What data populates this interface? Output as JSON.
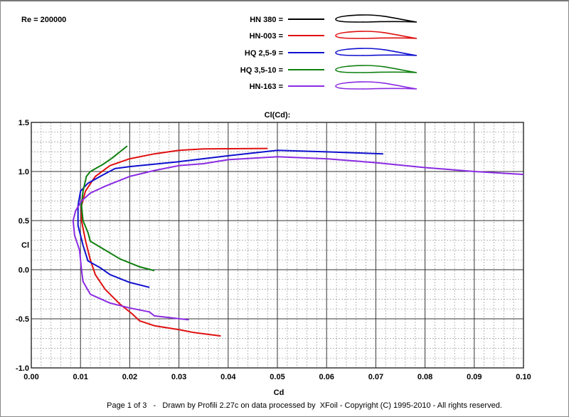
{
  "chart_data": {
    "type": "line",
    "title": "Cl(Cd):",
    "xlabel": "Cd",
    "ylabel": "Cl",
    "xlim": [
      0,
      0.1
    ],
    "ylim": [
      -1.0,
      1.5
    ],
    "grid": true,
    "xticks": [
      "0.00",
      "0.01",
      "0.02",
      "0.03",
      "0.04",
      "0.05",
      "0.06",
      "0.07",
      "0.08",
      "0.09",
      "0.10"
    ],
    "yticks": [
      "1.5",
      "1.0",
      "0.5",
      "0.0",
      "-0.5",
      "-1.0"
    ],
    "legend_placement": "top-center",
    "series": [
      {
        "name": "HN 380 =",
        "color": "#000000",
        "points": []
      },
      {
        "name": "HN-003 =",
        "color": "#e01010",
        "points": [
          [
            0.0385,
            -0.675
          ],
          [
            0.033,
            -0.64
          ],
          [
            0.03,
            -0.61
          ],
          [
            0.025,
            -0.57
          ],
          [
            0.022,
            -0.52
          ],
          [
            0.0205,
            -0.45
          ],
          [
            0.018,
            -0.35
          ],
          [
            0.015,
            -0.2
          ],
          [
            0.013,
            -0.05
          ],
          [
            0.012,
            0.1
          ],
          [
            0.011,
            0.3
          ],
          [
            0.0102,
            0.5
          ],
          [
            0.0102,
            0.65
          ],
          [
            0.011,
            0.8
          ],
          [
            0.013,
            0.95
          ],
          [
            0.016,
            1.06
          ],
          [
            0.02,
            1.13
          ],
          [
            0.025,
            1.18
          ],
          [
            0.03,
            1.215
          ],
          [
            0.035,
            1.23
          ],
          [
            0.048,
            1.235
          ]
        ]
      },
      {
        "name": "HQ 2,5-9 =",
        "color": "#1010d0",
        "points": [
          [
            0.024,
            -0.18
          ],
          [
            0.02,
            -0.13
          ],
          [
            0.016,
            -0.05
          ],
          [
            0.014,
            0.02
          ],
          [
            0.0115,
            0.09
          ],
          [
            0.0105,
            0.25
          ],
          [
            0.0095,
            0.45
          ],
          [
            0.0095,
            0.65
          ],
          [
            0.01,
            0.8
          ],
          [
            0.0115,
            0.88
          ],
          [
            0.014,
            0.95
          ],
          [
            0.017,
            1.03
          ],
          [
            0.02,
            1.05
          ],
          [
            0.03,
            1.1
          ],
          [
            0.04,
            1.16
          ],
          [
            0.05,
            1.215
          ],
          [
            0.06,
            1.2
          ],
          [
            0.0715,
            1.18
          ]
        ]
      },
      {
        "name": "HQ 3,5-10 =",
        "color": "#108010",
        "points": [
          [
            0.025,
            -0.01
          ],
          [
            0.022,
            0.03
          ],
          [
            0.018,
            0.11
          ],
          [
            0.015,
            0.2
          ],
          [
            0.012,
            0.29
          ],
          [
            0.0115,
            0.38
          ],
          [
            0.0105,
            0.5
          ],
          [
            0.0102,
            0.65
          ],
          [
            0.0105,
            0.8
          ],
          [
            0.0112,
            0.95
          ],
          [
            0.012,
            1.0
          ],
          [
            0.0145,
            1.07
          ],
          [
            0.0165,
            1.14
          ],
          [
            0.0195,
            1.26
          ]
        ]
      },
      {
        "name": "HN-163 =",
        "color": "#8a2be2",
        "points": [
          [
            0.032,
            -0.51
          ],
          [
            0.025,
            -0.47
          ],
          [
            0.024,
            -0.43
          ],
          [
            0.02,
            -0.39
          ],
          [
            0.016,
            -0.34
          ],
          [
            0.012,
            -0.25
          ],
          [
            0.0105,
            -0.12
          ],
          [
            0.0102,
            0.0
          ],
          [
            0.0098,
            0.2
          ],
          [
            0.0088,
            0.35
          ],
          [
            0.0085,
            0.5
          ],
          [
            0.009,
            0.6
          ],
          [
            0.0102,
            0.7
          ],
          [
            0.012,
            0.78
          ],
          [
            0.015,
            0.85
          ],
          [
            0.02,
            0.95
          ],
          [
            0.025,
            1.01
          ],
          [
            0.03,
            1.06
          ],
          [
            0.035,
            1.08
          ],
          [
            0.04,
            1.12
          ],
          [
            0.05,
            1.15
          ],
          [
            0.06,
            1.13
          ],
          [
            0.07,
            1.09
          ],
          [
            0.08,
            1.04
          ],
          [
            0.09,
            1.0
          ],
          [
            0.1,
            0.97
          ]
        ]
      }
    ]
  },
  "header": {
    "reynolds": "Re = 200000"
  },
  "footer": "Page 1 of 3   -   Drawn by Profili 2.27c on data processed by  XFoil - Copyright (C) 1995-2010 - All rights reserved."
}
